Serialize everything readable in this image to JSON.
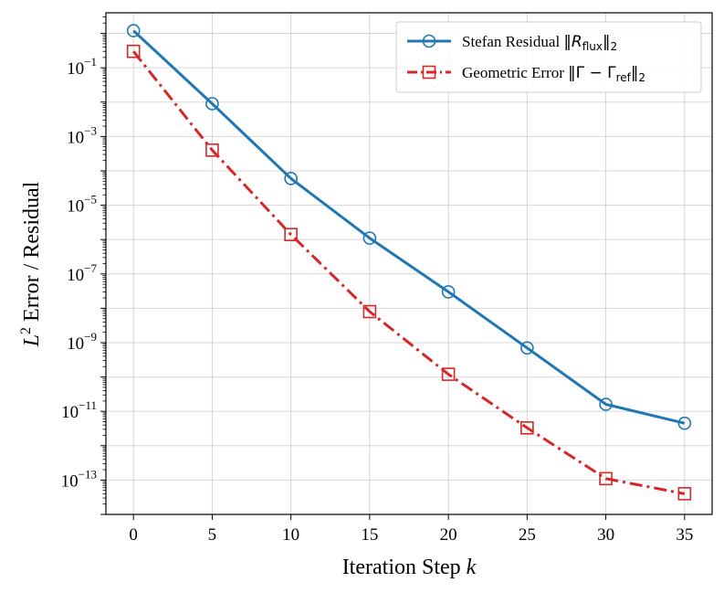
{
  "chart_data": {
    "type": "line",
    "title": "",
    "xlabel_text": "Iteration Step",
    "xlabel_var": "k",
    "ylabel_var": "L",
    "ylabel_sup": "2",
    "ylabel_text": " Error / Residual",
    "xlim": [
      -1.75,
      36.75
    ],
    "ylim_log10": [
      -14.0,
      0.6
    ],
    "yscale": "log",
    "grid": true,
    "legend_position": "top-right",
    "x": [
      0,
      5,
      10,
      15,
      20,
      25,
      30,
      35
    ],
    "x_ticks": [
      0,
      5,
      10,
      15,
      20,
      25,
      30,
      35
    ],
    "y_tick_exponents": [
      -1,
      -3,
      -5,
      -7,
      -9,
      -11,
      -13
    ],
    "y_tick_base": "10",
    "series": [
      {
        "name": "Stefan Residual",
        "legend_prefix": "Stefan Residual ",
        "legend_math": "‖",
        "legend_sym": "R",
        "legend_sub": "flux",
        "legend_math_end": "‖",
        "legend_end_sub": "2",
        "color": "#1f77b4",
        "marker": "circle",
        "linestyle": "solid",
        "values": [
          1.2,
          0.009,
          6e-05,
          1.1e-06,
          3e-08,
          7e-10,
          1.6e-11,
          4.5e-12
        ]
      },
      {
        "name": "Geometric Error",
        "legend_prefix": "Geometric Error ",
        "legend_math": "‖Γ − Γ",
        "legend_sub": "ref",
        "legend_math_end": "‖",
        "legend_end_sub": "2",
        "color": "#d62728",
        "marker": "square",
        "linestyle": "dashdot",
        "values": [
          0.3,
          0.0004,
          1.4e-06,
          8e-09,
          1.2e-10,
          3.3e-12,
          1.1e-13,
          4e-14
        ]
      }
    ]
  }
}
